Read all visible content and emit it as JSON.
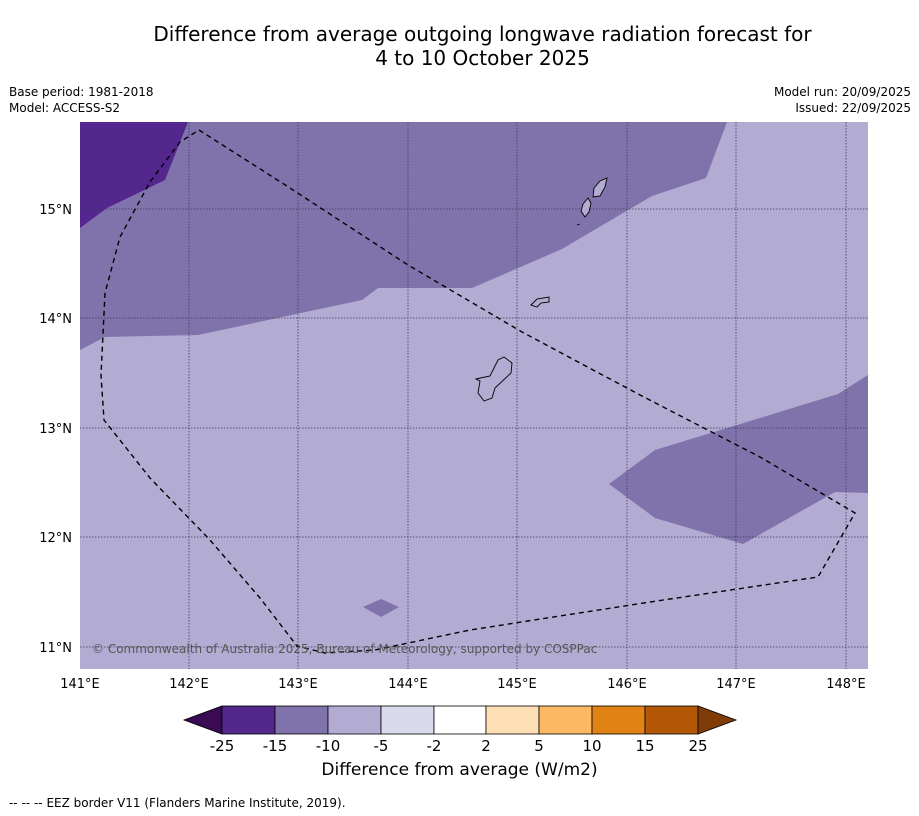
{
  "title": {
    "line1": "Difference from average outgoing longwave radiation forecast for",
    "line2": "4 to 10 October 2025"
  },
  "meta_left": {
    "base_period": "Base period: 1981-2018",
    "model": "Model: ACCESS-S2"
  },
  "meta_right": {
    "model_run": "Model run: 20/09/2025",
    "issued": "Issued: 22/09/2025"
  },
  "map": {
    "lat_ticks": [
      "15°N",
      "14°N",
      "13°N",
      "12°N",
      "11°N"
    ],
    "lon_ticks": [
      "141°E",
      "142°E",
      "143°E",
      "144°E",
      "145°E",
      "146°E",
      "147°E",
      "148°E"
    ],
    "copyright": "© Commonwealth of Australia 2025, Bureau of Meteorology, supported by COSPPac",
    "extent": {
      "lon_min": 141.0,
      "lon_max": 148.2,
      "lat_min": 10.8,
      "lat_max": 15.8
    }
  },
  "colorbar": {
    "title": "Difference from average (W/m2)",
    "labels": [
      "-25",
      "-15",
      "-10",
      "-5",
      "-2",
      "2",
      "5",
      "10",
      "15",
      "25"
    ],
    "colors": {
      "lt_minus25": "#3b0a55",
      "bin_minus25_minus15": "#54278f",
      "bin_minus15_minus10": "#8073ac",
      "bin_minus10_minus5": "#b2abd2",
      "bin_minus5_minus2": "#d8daeb",
      "bin_minus2_2": "#ffffff",
      "bin_2_5": "#fee0b6",
      "bin_5_10": "#fdb863",
      "bin_10_15": "#e08214",
      "bin_15_25": "#b35806",
      "gt_25": "#7f3b08"
    }
  },
  "footer": {
    "legend_symbol": "--  --  --",
    "legend_text": "EEZ border V11 (Flanders Marine Institute, 2019)."
  }
}
